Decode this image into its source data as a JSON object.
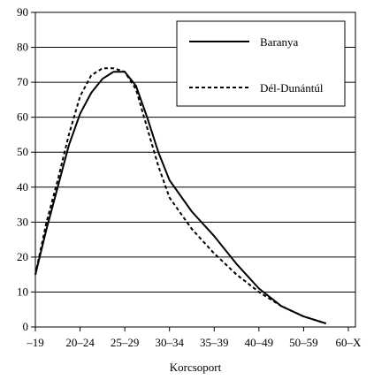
{
  "chart_data": {
    "type": "line",
    "title": "",
    "xlabel": "Korcsoport",
    "ylabel": "",
    "ylim": [
      0,
      90
    ],
    "yticks": [
      0,
      10,
      20,
      30,
      40,
      50,
      60,
      70,
      80,
      90
    ],
    "grid": "horizontal",
    "legend_position": "top-right",
    "x_tick_labels": [
      "–19",
      "20–24",
      "25–29",
      "30–34",
      "35–39",
      "40–49",
      "50–59",
      "60–X"
    ],
    "series": [
      {
        "name": "Baranya",
        "style": "solid",
        "points": [
          [
            0,
            15
          ],
          [
            0.25,
            28
          ],
          [
            0.5,
            40
          ],
          [
            0.75,
            52
          ],
          [
            1,
            61
          ],
          [
            1.25,
            67
          ],
          [
            1.5,
            71
          ],
          [
            1.75,
            73
          ],
          [
            2,
            73
          ],
          [
            2.25,
            69
          ],
          [
            2.5,
            60
          ],
          [
            2.75,
            50
          ],
          [
            3,
            42
          ],
          [
            3.5,
            33
          ],
          [
            4,
            26
          ],
          [
            4.5,
            18
          ],
          [
            5,
            11
          ],
          [
            5.5,
            6
          ],
          [
            6,
            3
          ],
          [
            6.5,
            1
          ]
        ]
      },
      {
        "name": "Dél-Dunántúl",
        "style": "dashed",
        "points": [
          [
            0,
            15
          ],
          [
            0.25,
            30
          ],
          [
            0.5,
            42
          ],
          [
            0.75,
            55
          ],
          [
            1,
            66
          ],
          [
            1.25,
            72
          ],
          [
            1.5,
            74
          ],
          [
            1.75,
            74
          ],
          [
            2,
            73
          ],
          [
            2.25,
            68
          ],
          [
            2.5,
            57
          ],
          [
            2.75,
            46
          ],
          [
            3,
            37
          ],
          [
            3.5,
            28
          ],
          [
            4,
            21
          ],
          [
            4.5,
            15
          ],
          [
            5,
            10
          ],
          [
            5.5,
            6
          ],
          [
            6,
            3
          ],
          [
            6.5,
            1
          ]
        ]
      }
    ]
  }
}
